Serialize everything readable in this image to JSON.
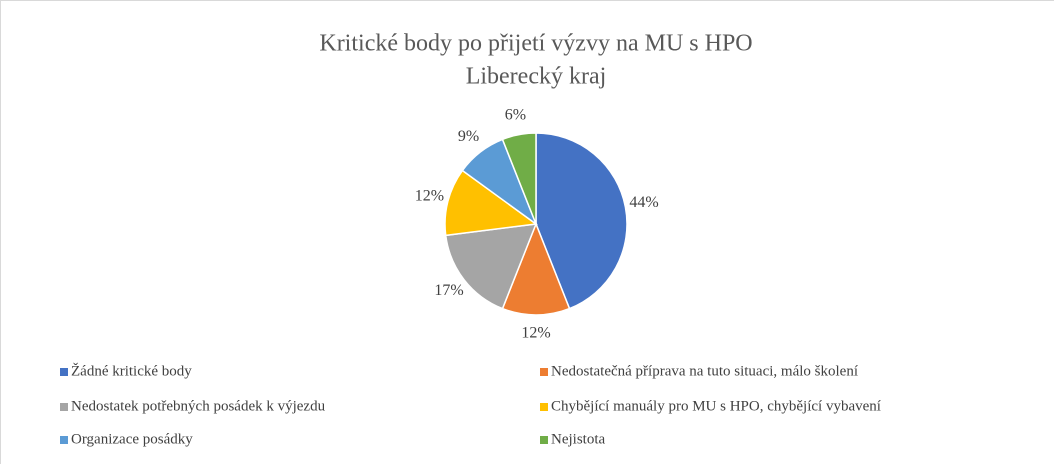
{
  "chart_data": {
    "type": "pie",
    "title": "Kritické body po přijetí výzvy na MU s HPO",
    "subtitle": "Liberecký kraj",
    "categories": [
      "Žádné kritické body",
      "Nedostatečná příprava na tuto situaci, málo školení",
      "Nedostatek potřebných posádek k výjezdu",
      "Chybějící manuály pro MU s HPO, chybějící vybavení",
      "Organizace posádky",
      "Nejistota"
    ],
    "values": [
      44,
      12,
      17,
      12,
      9,
      6
    ],
    "value_labels": [
      "44%",
      "12%",
      "17%",
      "12%",
      "9%",
      "6%"
    ],
    "colors": [
      "#4472c4",
      "#ed7d31",
      "#a5a5a5",
      "#ffc000",
      "#5b9bd5",
      "#70ad47"
    ],
    "legend": "bottom"
  }
}
